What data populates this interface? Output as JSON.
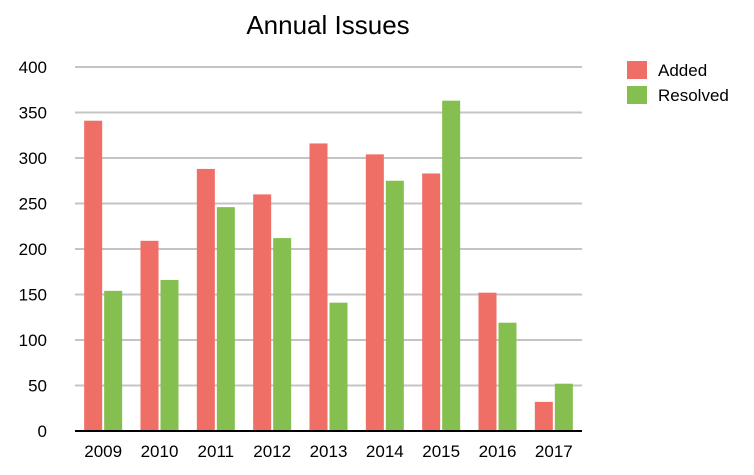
{
  "chart_data": {
    "type": "bar",
    "title": "Annual Issues",
    "xlabel": "",
    "ylabel": "",
    "categories": [
      "2009",
      "2010",
      "2011",
      "2012",
      "2013",
      "2014",
      "2015",
      "2016",
      "2017"
    ],
    "series": [
      {
        "name": "Added",
        "color": "#ef6e66",
        "values": [
          341,
          209,
          288,
          260,
          316,
          304,
          283,
          152,
          32
        ]
      },
      {
        "name": "Resolved",
        "color": "#84bf4f",
        "values": [
          154,
          166,
          246,
          212,
          141,
          275,
          363,
          119,
          52
        ]
      }
    ],
    "ylim": [
      0,
      400
    ],
    "yticks": [
      "0",
      "50",
      "100",
      "150",
      "200",
      "250",
      "300",
      "350",
      "400"
    ],
    "grid": true,
    "legend_position": "top-right"
  }
}
